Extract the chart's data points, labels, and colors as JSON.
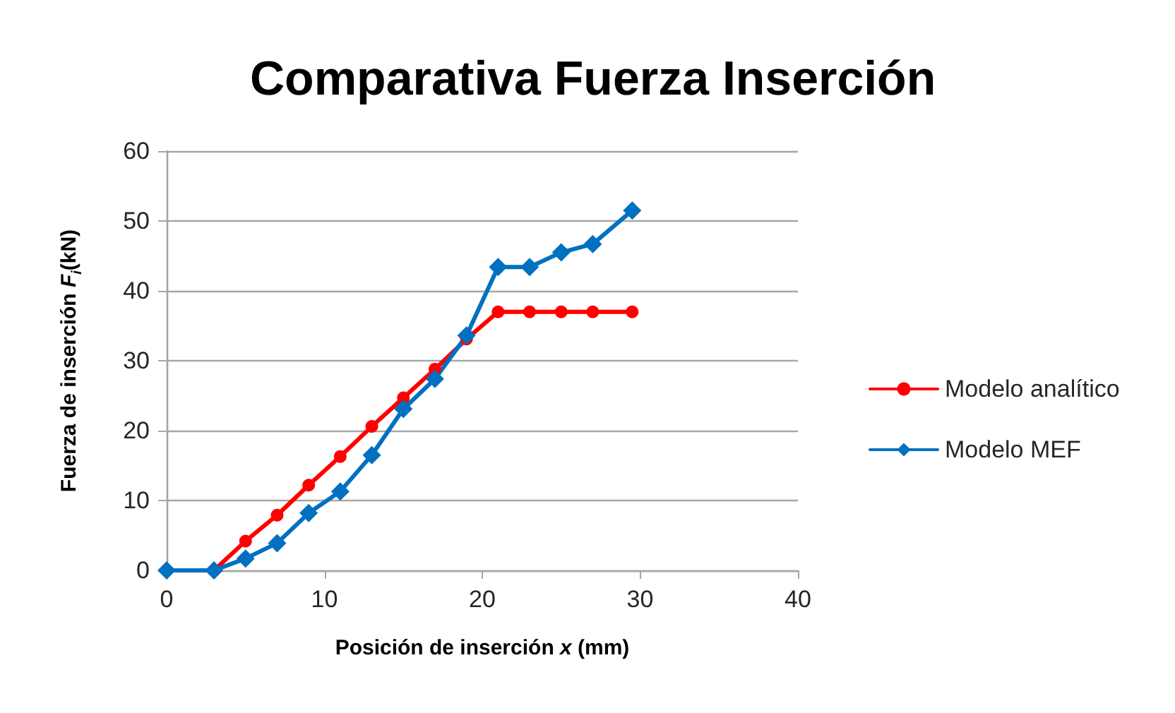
{
  "chart_data": {
    "type": "line",
    "title": "Comparativa Fuerza Inserción",
    "xlabel": "Posición de inserción x (mm)",
    "ylabel": "Fuerza de inserción F$_{i}$(kN)",
    "x": [
      0,
      3,
      5,
      7,
      9,
      11,
      13,
      15,
      17,
      19,
      21,
      23,
      25,
      27,
      29.5
    ],
    "series": [
      {
        "name": "Modelo analítico",
        "color": "#ff0000",
        "marker": "circle",
        "values": [
          0,
          0,
          4.2,
          7.9,
          12.2,
          16.3,
          20.6,
          24.7,
          28.8,
          33.1,
          37.0,
          37.0,
          37.0,
          37.0,
          37.0
        ]
      },
      {
        "name": "Modelo MEF",
        "color": "#0070c0",
        "marker": "diamond",
        "values": [
          0,
          0,
          1.7,
          3.9,
          8.2,
          11.3,
          16.5,
          23.1,
          27.4,
          33.6,
          43.4,
          43.4,
          45.5,
          46.7,
          51.5
        ]
      }
    ],
    "xlim": [
      0,
      40
    ],
    "xticks": [
      0,
      10,
      20,
      30,
      40
    ],
    "ylim": [
      0,
      60
    ],
    "yticks": [
      0,
      10,
      20,
      30,
      40,
      50,
      60
    ],
    "grid": "y",
    "legend": "right",
    "line_style": "solid"
  }
}
